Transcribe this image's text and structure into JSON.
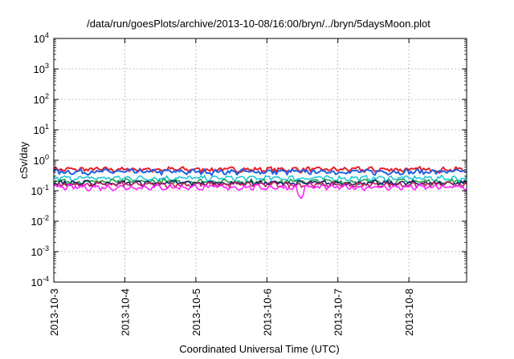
{
  "chart_data": {
    "type": "line",
    "title": "/data/run/goesPlots/archive/2013-10-08/16:00/bryn/../bryn/5daysMoon.plot",
    "xlabel": "Coordinated Universal Time (UTC)",
    "ylabel": "cSv/day",
    "yscale": "log",
    "ylim": [
      0.0001,
      10000
    ],
    "y_ticks": [
      {
        "value": 0.0001,
        "base": "10",
        "exp": "-4"
      },
      {
        "value": 0.001,
        "base": "10",
        "exp": "-3"
      },
      {
        "value": 0.01,
        "base": "10",
        "exp": "-2"
      },
      {
        "value": 0.1,
        "base": "10",
        "exp": "-1"
      },
      {
        "value": 1,
        "base": "10",
        "exp": "0"
      },
      {
        "value": 10,
        "base": "10",
        "exp": "1"
      },
      {
        "value": 100,
        "base": "10",
        "exp": "2"
      },
      {
        "value": 1000,
        "base": "10",
        "exp": "3"
      },
      {
        "value": 10000,
        "base": "10",
        "exp": "4"
      }
    ],
    "xlim": [
      "2013-10-03",
      "2013-10-08T19:30"
    ],
    "x_ticks": [
      "2013-10-3",
      "2013-10-4",
      "2013-10-5",
      "2013-10-6",
      "2013-10-7",
      "2013-10-8"
    ],
    "grid": true,
    "legend": "none",
    "series": [
      {
        "color": "#e8202a",
        "level": 0.5
      },
      {
        "color": "#2060e0",
        "level": 0.42
      },
      {
        "color": "#20c8d8",
        "level": 0.26
      },
      {
        "color": "#20a040",
        "level": 0.2
      },
      {
        "color": "#102070",
        "level": 0.18
      },
      {
        "color": "#c02060",
        "level": 0.16
      },
      {
        "color": "#ff20ff",
        "level": 0.13
      }
    ],
    "annotations": [
      {
        "x": "2013-10-06T11:30",
        "y": 0.05,
        "series_color": "#ff20ff",
        "note": "dip"
      }
    ]
  }
}
